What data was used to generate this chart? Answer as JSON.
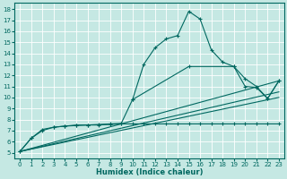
{
  "background_color": "#c5e8e3",
  "grid_color": "#b0d8d0",
  "line_color": "#006860",
  "xlabel": "Humidex (Indice chaleur)",
  "xlim": [
    -0.5,
    23.5
  ],
  "ylim_min": 4.5,
  "ylim_max": 18.6,
  "yticks": [
    5,
    6,
    7,
    8,
    9,
    10,
    11,
    12,
    13,
    14,
    15,
    16,
    17,
    18
  ],
  "xticks": [
    0,
    1,
    2,
    3,
    4,
    5,
    6,
    7,
    8,
    9,
    10,
    11,
    12,
    13,
    14,
    15,
    16,
    17,
    18,
    19,
    20,
    21,
    22,
    23
  ],
  "series": [
    {
      "x": [
        0,
        1,
        2,
        3,
        4,
        5,
        6,
        7,
        8,
        9,
        10,
        11,
        12,
        13,
        14,
        15,
        16,
        17,
        18,
        19,
        20,
        21,
        22,
        23
      ],
      "y": [
        5.1,
        6.3,
        7.0,
        7.3,
        7.4,
        7.45,
        7.5,
        7.5,
        7.55,
        7.6,
        7.6,
        7.6,
        7.6,
        7.6,
        7.6,
        7.6,
        7.6,
        7.6,
        7.6,
        7.6,
        7.6,
        7.6,
        7.6,
        7.6
      ],
      "with_markers": true
    },
    {
      "x": [
        0,
        1,
        2,
        3,
        4,
        5,
        6,
        7,
        8,
        9,
        10,
        11,
        12,
        13,
        14,
        15,
        16,
        17,
        18,
        19,
        20,
        21,
        22,
        23
      ],
      "y": [
        5.1,
        6.3,
        7.1,
        7.3,
        7.4,
        7.5,
        7.5,
        7.55,
        7.6,
        7.65,
        9.8,
        13.0,
        14.5,
        15.3,
        15.6,
        17.8,
        17.1,
        14.3,
        13.2,
        12.8,
        11.7,
        11.0,
        9.9,
        11.5
      ],
      "with_markers": true
    },
    {
      "x": [
        0,
        23
      ],
      "y": [
        5.1,
        11.5
      ],
      "with_markers": false
    },
    {
      "x": [
        0,
        23
      ],
      "y": [
        5.1,
        10.5
      ],
      "with_markers": false
    },
    {
      "x": [
        0,
        23
      ],
      "y": [
        5.1,
        10.0
      ],
      "with_markers": false
    },
    {
      "x": [
        10,
        15,
        19,
        20,
        21,
        22,
        23
      ],
      "y": [
        9.8,
        12.8,
        12.8,
        11.0,
        10.9,
        9.9,
        11.5
      ],
      "with_markers": true
    }
  ]
}
